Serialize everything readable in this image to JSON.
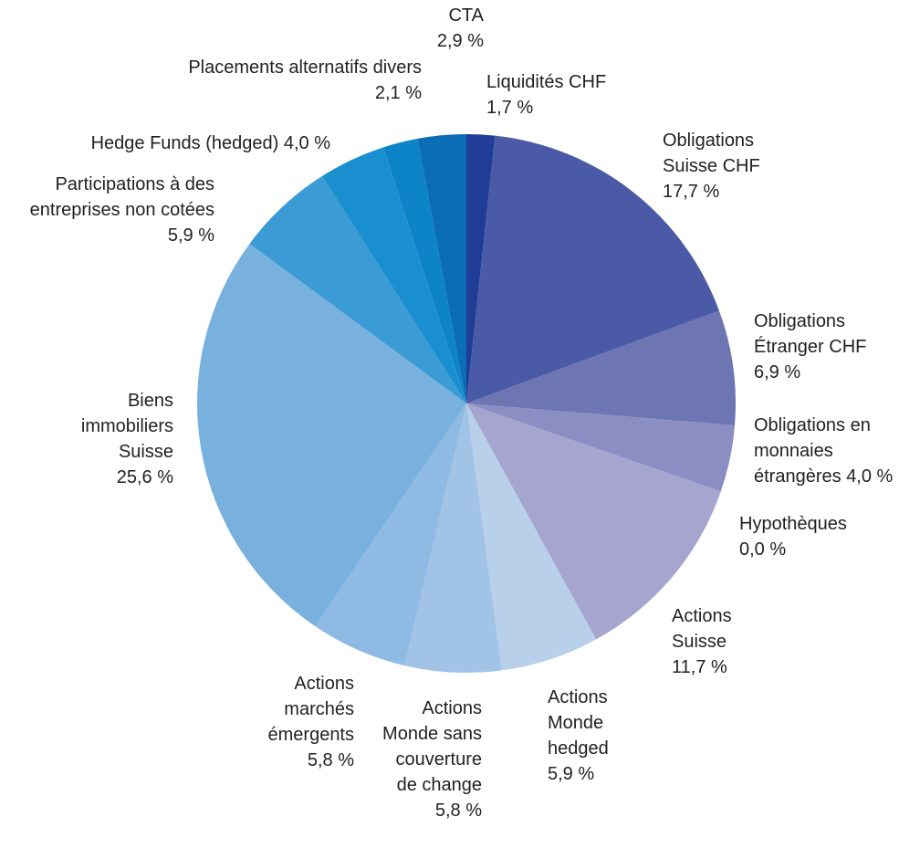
{
  "chart_data": {
    "type": "pie",
    "categories": [
      "Liquidités CHF",
      "Obligations Suisse CHF",
      "Obligations Étranger CHF",
      "Obligations en monnaies étrangères",
      "Hypothèques",
      "Actions Suisse",
      "Actions Monde hedged",
      "Actions Monde sans couverture de change",
      "Actions marchés émergents",
      "Biens immobiliers Suisse",
      "Participations à des entreprises non cotées",
      "Hedge Funds (hedged)",
      "Placements alternatifs divers",
      "CTA"
    ],
    "values": [
      1.7,
      17.7,
      6.9,
      4.0,
      0.0,
      11.7,
      5.9,
      5.8,
      5.8,
      25.6,
      5.9,
      4.0,
      2.1,
      2.9
    ],
    "value_labels": [
      "1,7 %",
      "17,7 %",
      "6,9 %",
      "4,0 %",
      "0,0 %",
      "11,7 %",
      "5,9 %",
      "5,8 %",
      "5,8 %",
      "25,6 %",
      "5,9 %",
      "4,0 %",
      "2,1 %",
      "2,9 %"
    ],
    "colors": [
      "#1f3d96",
      "#4a5aa6",
      "#6e75b3",
      "#8b8ec3",
      "#9a9ccb",
      "#a5a5d0",
      "#b8d0ea",
      "#a0c3e6",
      "#8fbae3",
      "#78b0de",
      "#3a9bd5",
      "#1a8fd0",
      "#0d84c8",
      "#0a6db5"
    ]
  }
}
